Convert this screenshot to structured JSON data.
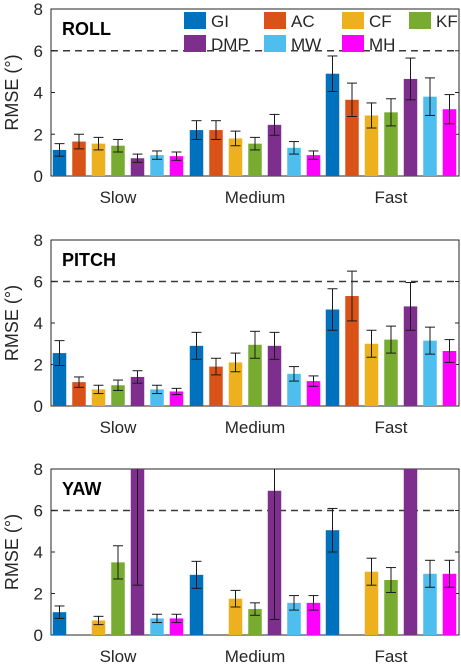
{
  "legend": [
    "GI",
    "AC",
    "CF",
    "KF",
    "DMP",
    "MW",
    "MH"
  ],
  "colors": {
    "GI": "#0072BD",
    "AC": "#D95319",
    "CF": "#EDB120",
    "KF": "#77AC30",
    "DMP": "#7E2F8E",
    "MW": "#4DBEEE",
    "MH": "#FF00FF"
  },
  "chart_data": [
    {
      "type": "bar",
      "title": "ROLL",
      "ylabel": "RMSE (°)",
      "xlabel": "",
      "ylim": [
        0,
        8
      ],
      "yticks": [
        "0",
        "2",
        "4",
        "6",
        "8"
      ],
      "threshold": 6,
      "categories": [
        "Slow",
        "Medium",
        "Fast"
      ],
      "series": [
        {
          "name": "GI",
          "values": [
            1.25,
            2.2,
            4.9
          ],
          "err": [
            0.3,
            0.45,
            0.85
          ]
        },
        {
          "name": "AC",
          "values": [
            1.65,
            2.2,
            3.65
          ],
          "err": [
            0.35,
            0.45,
            0.8
          ]
        },
        {
          "name": "CF",
          "values": [
            1.55,
            1.8,
            2.9
          ],
          "err": [
            0.3,
            0.35,
            0.6
          ]
        },
        {
          "name": "KF",
          "values": [
            1.45,
            1.55,
            3.05
          ],
          "err": [
            0.3,
            0.3,
            0.65
          ]
        },
        {
          "name": "DMP",
          "values": [
            0.85,
            2.45,
            4.65
          ],
          "err": [
            0.2,
            0.5,
            1.0
          ]
        },
        {
          "name": "MW",
          "values": [
            1.0,
            1.35,
            3.8
          ],
          "err": [
            0.2,
            0.3,
            0.9
          ]
        },
        {
          "name": "MH",
          "values": [
            0.95,
            1.0,
            3.2
          ],
          "err": [
            0.2,
            0.2,
            0.7
          ]
        }
      ]
    },
    {
      "type": "bar",
      "title": "PITCH",
      "ylabel": "RMSE (°)",
      "xlabel": "",
      "ylim": [
        0,
        8
      ],
      "yticks": [
        "0",
        "2",
        "4",
        "6",
        "8"
      ],
      "threshold": 6,
      "categories": [
        "Slow",
        "Medium",
        "Fast"
      ],
      "series": [
        {
          "name": "GI",
          "values": [
            2.55,
            2.9,
            4.65
          ],
          "err": [
            0.6,
            0.65,
            1.0
          ]
        },
        {
          "name": "AC",
          "values": [
            1.15,
            1.9,
            5.3
          ],
          "err": [
            0.25,
            0.4,
            1.2
          ]
        },
        {
          "name": "CF",
          "values": [
            0.8,
            2.1,
            3.0
          ],
          "err": [
            0.2,
            0.45,
            0.65
          ]
        },
        {
          "name": "KF",
          "values": [
            1.0,
            2.95,
            3.2
          ],
          "err": [
            0.25,
            0.65,
            0.65
          ]
        },
        {
          "name": "DMP",
          "values": [
            1.4,
            2.9,
            4.8
          ],
          "err": [
            0.3,
            0.65,
            1.15
          ]
        },
        {
          "name": "MW",
          "values": [
            0.8,
            1.55,
            3.15
          ],
          "err": [
            0.2,
            0.35,
            0.65
          ]
        },
        {
          "name": "MH",
          "values": [
            0.7,
            1.2,
            2.65
          ],
          "err": [
            0.15,
            0.25,
            0.55
          ]
        }
      ]
    },
    {
      "type": "bar",
      "title": "YAW",
      "ylabel": "RMSE (°)",
      "xlabel": "",
      "ylim": [
        0,
        8
      ],
      "yticks": [
        "0",
        "2",
        "4",
        "6",
        "8"
      ],
      "threshold": 6,
      "categories": [
        "Slow",
        "Medium",
        "Fast"
      ],
      "series": [
        {
          "name": "GI",
          "values": [
            1.1,
            2.9,
            5.05
          ],
          "err": [
            0.3,
            0.65,
            1.05
          ]
        },
        {
          "name": "AC",
          "values": [
            null,
            null,
            null
          ],
          "err": [
            null,
            null,
            null
          ]
        },
        {
          "name": "CF",
          "values": [
            0.7,
            1.75,
            3.05
          ],
          "err": [
            0.2,
            0.4,
            0.65
          ]
        },
        {
          "name": "KF",
          "values": [
            3.5,
            1.25,
            2.65
          ],
          "err": [
            0.8,
            0.3,
            0.6
          ]
        },
        {
          "name": "DMP",
          "values": [
            8.0,
            6.95,
            8.0
          ],
          "err": [
            5.6,
            6.2,
            null
          ]
        },
        {
          "name": "MW",
          "values": [
            0.8,
            1.55,
            2.95
          ],
          "err": [
            0.2,
            0.35,
            0.65
          ]
        },
        {
          "name": "MH",
          "values": [
            0.8,
            1.55,
            2.95
          ],
          "err": [
            0.2,
            0.35,
            0.65
          ]
        }
      ]
    }
  ]
}
